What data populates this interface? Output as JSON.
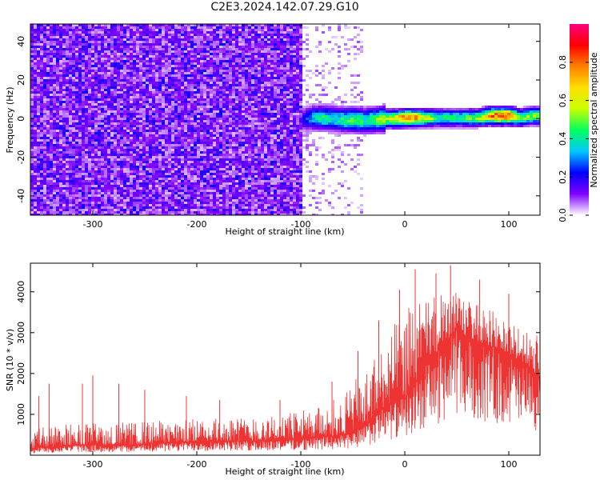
{
  "title": "C2E3.2024.142.07.29.G10",
  "chart_data": [
    {
      "type": "heatmap",
      "xlabel": "Height of straight line (km)",
      "ylabel": "Frequency (Hz)",
      "xlim": [
        -360,
        130
      ],
      "ylim": [
        -50,
        49
      ],
      "x_ticks": [
        -300,
        -200,
        -100,
        0,
        100
      ],
      "y_ticks": [
        -40,
        -20,
        0,
        20,
        40
      ],
      "x_tick_labels": [
        "-300",
        "-200",
        "-100",
        "0",
        "100"
      ],
      "y_tick_labels": [
        "-40",
        "-20",
        "0",
        "20",
        "40"
      ],
      "colorbar": {
        "label": "Normalized spectral amplitude",
        "range": [
          0,
          1
        ],
        "ticks": [
          0.0,
          0.2,
          0.4,
          0.6,
          0.8
        ],
        "tick_labels": [
          "0.0",
          "0.2",
          "0.4",
          "0.6",
          "0.8"
        ],
        "colors": [
          "#ffffff",
          "#8000ff",
          "#0000ff",
          "#00c8ff",
          "#00ff60",
          "#c8ff00",
          "#ffe000",
          "#ff8000",
          "#ff0000",
          "#ff0080"
        ]
      },
      "regions": [
        {
          "x_range": [
            -360,
            -100
          ],
          "description_level": 0.15
        },
        {
          "x_range": [
            -100,
            -40
          ],
          "description_level": 0.05
        },
        {
          "x_range": [
            -95,
            130
          ],
          "signal_frequency": 1,
          "signal_level": 0.5
        }
      ],
      "signal_band": {
        "x": [
          -100,
          -90,
          -80,
          -70,
          -60,
          -50,
          -40,
          -30,
          -20,
          -10,
          0,
          10,
          20,
          30,
          40,
          50,
          60,
          70,
          80,
          90,
          100,
          110,
          120,
          130
        ],
        "freq_center": [
          0,
          1,
          1,
          0.5,
          0,
          0,
          -0.5,
          0,
          0.5,
          0.5,
          1,
          1,
          1,
          1,
          1,
          1,
          1,
          1,
          2,
          2,
          2,
          1,
          2,
          2
        ],
        "amplitude": [
          0.2,
          0.35,
          0.45,
          0.4,
          0.45,
          0.5,
          0.45,
          0.5,
          0.6,
          0.7,
          0.85,
          0.75,
          0.6,
          0.45,
          0.45,
          0.45,
          0.5,
          0.55,
          0.75,
          0.9,
          0.85,
          0.5,
          0.55,
          0.5
        ]
      }
    },
    {
      "type": "line",
      "xlabel": "Height of straight line (km)",
      "ylabel": "SNR (10 * v/v)",
      "xlim": [
        -360,
        130
      ],
      "ylim": [
        0,
        4700
      ],
      "x_ticks": [
        -300,
        -200,
        -100,
        0,
        100
      ],
      "y_ticks": [
        1000,
        2000,
        3000,
        4000
      ],
      "x_tick_labels": [
        "-300",
        "-200",
        "-100",
        "0",
        "100"
      ],
      "y_tick_labels": [
        "1000",
        "2000",
        "3000",
        "4000"
      ],
      "color": "#ee3333",
      "envelope": {
        "x": [
          -360,
          -350,
          -340,
          -320,
          -300,
          -280,
          -260,
          -240,
          -220,
          -200,
          -180,
          -160,
          -140,
          -120,
          -100,
          -80,
          -60,
          -50,
          -40,
          -30,
          -20,
          -10,
          0,
          10,
          20,
          30,
          40,
          50,
          60,
          70,
          80,
          90,
          100,
          110,
          120,
          130
        ],
        "low": [
          150,
          200,
          200,
          250,
          250,
          250,
          250,
          300,
          300,
          350,
          350,
          350,
          350,
          400,
          400,
          450,
          500,
          600,
          700,
          900,
          1200,
          1300,
          1400,
          1800,
          2200,
          2500,
          2800,
          3100,
          2900,
          2800,
          2700,
          2600,
          2500,
          2300,
          2100,
          1900
        ],
        "high": [
          600,
          700,
          700,
          800,
          800,
          800,
          800,
          850,
          850,
          900,
          900,
          950,
          950,
          1000,
          1100,
          1200,
          1500,
          1800,
          2000,
          2500,
          2800,
          3200,
          3600,
          3700,
          3800,
          3900,
          4100,
          4000,
          3800,
          3700,
          3600,
          3500,
          3300,
          3100,
          3000,
          2900
        ],
        "spikes": [
          [
            -352,
            1450
          ],
          [
            -342,
            1750
          ],
          [
            -310,
            1750
          ],
          [
            -300,
            1950
          ],
          [
            -275,
            1750
          ],
          [
            -250,
            1600
          ],
          [
            -210,
            1450
          ],
          [
            -178,
            1350
          ],
          [
            -120,
            1350
          ],
          [
            -70,
            1800
          ],
          [
            -45,
            2550
          ],
          [
            -25,
            3300
          ],
          [
            -5,
            4050
          ],
          [
            10,
            4550
          ],
          [
            30,
            4450
          ],
          [
            44,
            4650
          ],
          [
            72,
            4300
          ],
          [
            100,
            3950
          ]
        ]
      }
    }
  ]
}
